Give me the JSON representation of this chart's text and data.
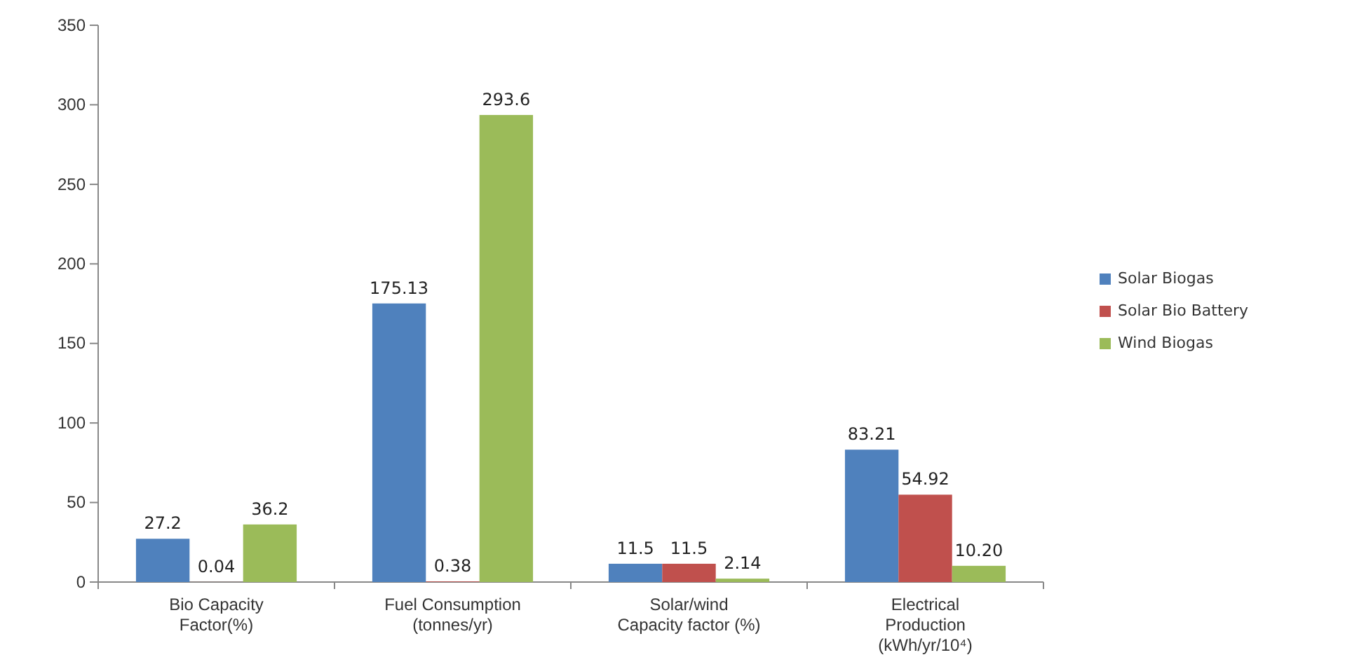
{
  "chart_data": {
    "type": "bar",
    "categories": [
      "Bio Capacity Factor(%)",
      "Fuel Consumption (tonnes/yr)",
      "Solar/wind Capacity factor (%)",
      "Electrical Production (kWh/yr/10⁴)"
    ],
    "series": [
      {
        "name": "Solar Biogas",
        "color": "#4f81bd",
        "values": [
          27.2,
          175.13,
          11.5,
          83.21
        ],
        "value_labels": [
          "27.2",
          "175.13",
          "11.5",
          "83.21"
        ]
      },
      {
        "name": "Solar Bio Battery",
        "color": "#c0504d",
        "values": [
          0.04,
          0.38,
          11.5,
          54.92
        ],
        "value_labels": [
          "0.04",
          "0.38",
          "11.5",
          "54.92"
        ]
      },
      {
        "name": "Wind Biogas",
        "color": "#9bbb59",
        "values": [
          36.2,
          293.6,
          2.14,
          10.2
        ],
        "value_labels": [
          "36.2",
          "293.6",
          "2.14",
          "10.20"
        ]
      }
    ],
    "ylim": [
      0,
      350
    ],
    "yticks": [
      0,
      50,
      100,
      150,
      200,
      250,
      300,
      350
    ],
    "legend": "right"
  }
}
